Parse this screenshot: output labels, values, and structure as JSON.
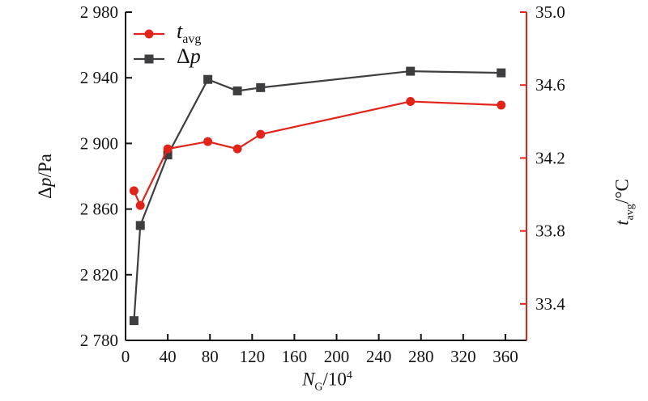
{
  "figure": {
    "background": "#ffffff"
  },
  "chart_data": {
    "type": "line",
    "x": [
      8,
      14,
      40,
      78,
      106,
      128,
      270,
      356
    ],
    "series": [
      {
        "name": "tavg",
        "legend": {
          "pre": "",
          "main": "t",
          "sub": "avg"
        },
        "axis": "right",
        "color": "#e2231a",
        "marker": "circle",
        "values": [
          34.02,
          33.94,
          34.25,
          34.29,
          34.25,
          34.33,
          34.51,
          34.49
        ]
      },
      {
        "name": "delta-p",
        "legend": {
          "pre": "Δ",
          "main": "p",
          "sub": ""
        },
        "axis": "left",
        "color": "#3e3e40",
        "marker": "square",
        "values": [
          2792,
          2850,
          2893,
          2939,
          2932,
          2934,
          2944,
          2943
        ]
      }
    ],
    "x_axis": {
      "min": 0,
      "max": 380,
      "ticks": [
        0,
        40,
        80,
        120,
        160,
        200,
        240,
        280,
        320,
        360
      ],
      "tick_labels": [
        "0",
        "40",
        "80",
        "120",
        "160",
        "200",
        "240",
        "280",
        "320",
        "360"
      ],
      "label": {
        "pre": "",
        "main": "N",
        "sub": "G",
        "mid": "/10",
        "sup": "4"
      },
      "color": "#141414"
    },
    "left_axis": {
      "min": 2780,
      "max": 2980,
      "ticks": [
        2780,
        2820,
        2860,
        2900,
        2940,
        2980
      ],
      "tick_labels": [
        "2 780",
        "2 820",
        "2 860",
        "2 900",
        "2 940",
        "2 980"
      ],
      "label": {
        "pre": "Δ",
        "main": "p",
        "mid": "/Pa"
      },
      "color": "#141414"
    },
    "right_axis": {
      "min": 33.2,
      "max": 35.0,
      "ticks": [
        33.4,
        33.8,
        34.2,
        34.6,
        35.0
      ],
      "tick_labels": [
        "33.4",
        "33.8",
        "34.2",
        "34.6",
        "35.0"
      ],
      "label": {
        "pre": "",
        "main": "t",
        "sub": "avg",
        "mid": "/°C"
      },
      "color": "#e2231a",
      "tick_label_color": "#141414"
    },
    "legend_position": "top-left",
    "grid": false,
    "plot_border": "left-bottom-right-only"
  }
}
